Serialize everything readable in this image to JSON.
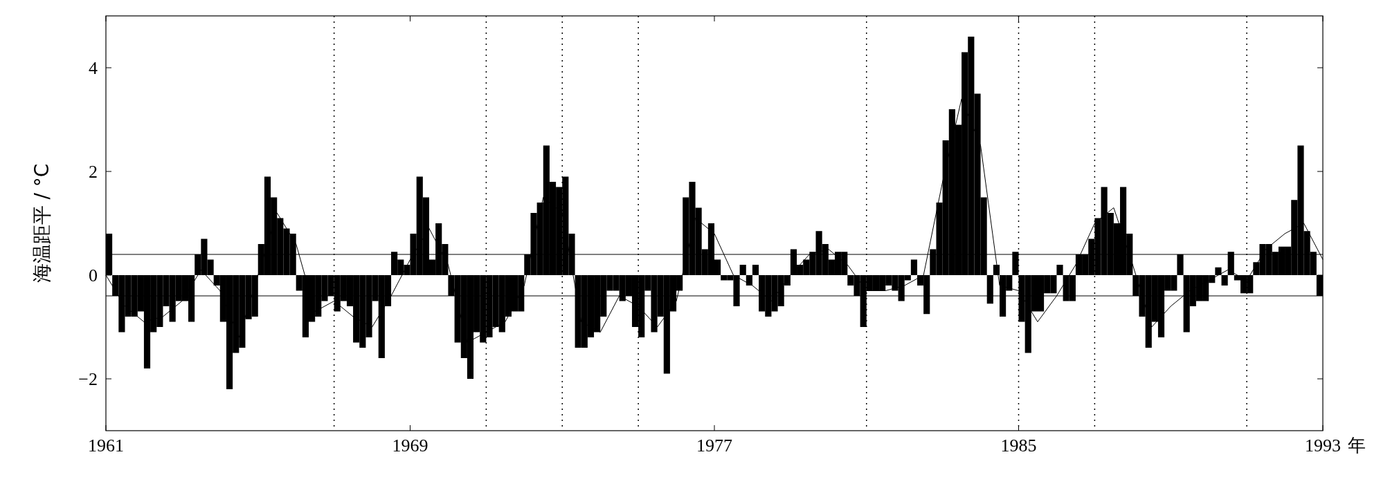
{
  "chart_data": {
    "type": "bar",
    "xlabel": "年",
    "ylabel": "海温距平 / °C",
    "xlim": [
      1961,
      1993
    ],
    "xticks": [
      1961,
      1969,
      1977,
      1985,
      1993
    ],
    "ylim": [
      -3,
      5
    ],
    "yticks": [
      -2,
      0,
      2,
      4
    ],
    "grid": false,
    "ref_lines": [
      {
        "axis": "y",
        "value": 0.4,
        "color": "#000000",
        "line_style": "solid"
      },
      {
        "axis": "y",
        "value": -0.4,
        "color": "#000000",
        "line_style": "solid"
      },
      {
        "axis": "x",
        "value": 1967,
        "color": "#000000",
        "line_style": "dotted"
      },
      {
        "axis": "x",
        "value": 1971,
        "color": "#000000",
        "line_style": "dotted"
      },
      {
        "axis": "x",
        "value": 1973,
        "color": "#000000",
        "line_style": "dotted"
      },
      {
        "axis": "x",
        "value": 1975,
        "color": "#000000",
        "line_style": "dotted"
      },
      {
        "axis": "x",
        "value": 1981,
        "color": "#000000",
        "line_style": "dotted"
      },
      {
        "axis": "x",
        "value": 1985,
        "color": "#000000",
        "line_style": "dotted"
      },
      {
        "axis": "x",
        "value": 1987,
        "color": "#000000",
        "line_style": "dotted"
      },
      {
        "axis": "x",
        "value": 1991,
        "color": "#000000",
        "line_style": "dotted"
      }
    ],
    "series": [
      {
        "color": "#000000",
        "x": [
          1961.083,
          1961.25,
          1961.417,
          1961.583,
          1961.75,
          1961.917,
          1962.083,
          1962.25,
          1962.417,
          1962.583,
          1962.75,
          1962.917,
          1963.083,
          1963.25,
          1963.417,
          1963.583,
          1963.75,
          1963.917,
          1964.083,
          1964.25,
          1964.417,
          1964.583,
          1964.75,
          1964.917,
          1965.083,
          1965.25,
          1965.417,
          1965.583,
          1965.75,
          1965.917,
          1966.083,
          1966.25,
          1966.417,
          1966.583,
          1966.75,
          1966.917,
          1967.083,
          1967.25,
          1967.417,
          1967.583,
          1967.75,
          1967.917,
          1968.083,
          1968.25,
          1968.417,
          1968.583,
          1968.75,
          1968.917,
          1969.083,
          1969.25,
          1969.417,
          1969.583,
          1969.75,
          1969.917,
          1970.083,
          1970.25,
          1970.417,
          1970.583,
          1970.75,
          1970.917,
          1971.083,
          1971.25,
          1971.417,
          1971.583,
          1971.75,
          1971.917,
          1972.083,
          1972.25,
          1972.417,
          1972.583,
          1972.75,
          1972.917,
          1973.083,
          1973.25,
          1973.417,
          1973.583,
          1973.75,
          1973.917,
          1974.083,
          1974.25,
          1974.417,
          1974.583,
          1974.75,
          1974.917,
          1975.083,
          1975.25,
          1975.417,
          1975.583,
          1975.75,
          1975.917,
          1976.083,
          1976.25,
          1976.417,
          1976.583,
          1976.75,
          1976.917,
          1977.083,
          1977.25,
          1977.417,
          1977.583,
          1977.75,
          1977.917,
          1978.083,
          1978.25,
          1978.417,
          1978.583,
          1978.75,
          1978.917,
          1979.083,
          1979.25,
          1979.417,
          1979.583,
          1979.75,
          1979.917,
          1980.083,
          1980.25,
          1980.417,
          1980.583,
          1980.75,
          1980.917,
          1981.083,
          1981.25,
          1981.417,
          1981.583,
          1981.75,
          1981.917,
          1982.083,
          1982.25,
          1982.417,
          1982.583,
          1982.75,
          1982.917,
          1983.083,
          1983.25,
          1983.417,
          1983.583,
          1983.75,
          1983.917,
          1984.083,
          1984.25,
          1984.417,
          1984.583,
          1984.75,
          1984.917,
          1985.083,
          1985.25,
          1985.417,
          1985.583,
          1985.75,
          1985.917,
          1986.083,
          1986.25,
          1986.417,
          1986.583,
          1986.75,
          1986.917,
          1987.083,
          1987.25,
          1987.417,
          1987.583,
          1987.75,
          1987.917,
          1988.083,
          1988.25,
          1988.417,
          1988.583,
          1988.75,
          1988.917,
          1989.083,
          1989.25,
          1989.417,
          1989.583,
          1989.75,
          1989.917,
          1990.083,
          1990.25,
          1990.417,
          1990.583,
          1990.75,
          1990.917,
          1991.083,
          1991.25,
          1991.417,
          1991.583,
          1991.75,
          1991.917,
          1992.083,
          1992.25,
          1992.417,
          1992.583,
          1992.75,
          1992.917
        ],
        "values": [
          0.8,
          -0.4,
          -1.1,
          -0.8,
          -0.8,
          -0.7,
          -1.8,
          -1.1,
          -1.0,
          -0.6,
          -0.9,
          -0.5,
          -0.5,
          -0.9,
          0.4,
          0.7,
          0.3,
          -0.2,
          -0.9,
          -2.2,
          -1.5,
          -1.4,
          -0.85,
          -0.8,
          0.6,
          1.9,
          1.5,
          1.1,
          0.9,
          0.8,
          -0.3,
          -1.2,
          -0.9,
          -0.8,
          -0.5,
          -0.4,
          -0.7,
          -0.5,
          -0.6,
          -1.3,
          -1.4,
          -1.2,
          -0.5,
          -1.6,
          -0.6,
          0.45,
          0.3,
          0.2,
          0.8,
          1.9,
          1.5,
          0.3,
          1.0,
          0.6,
          -0.4,
          -1.3,
          -1.6,
          -2.0,
          -1.1,
          -1.3,
          -1.2,
          -1.0,
          -1.1,
          -0.8,
          -0.7,
          -0.7,
          0.4,
          1.2,
          1.4,
          2.5,
          1.8,
          1.7,
          1.9,
          0.8,
          -1.4,
          -1.4,
          -1.2,
          -1.1,
          -0.8,
          -0.3,
          -0.3,
          -0.5,
          -0.4,
          -1.0,
          -1.2,
          -0.3,
          -1.1,
          -0.8,
          -1.9,
          -0.7,
          -0.3,
          1.5,
          1.8,
          1.3,
          0.5,
          1.0,
          0.3,
          -0.1,
          -0.1,
          -0.6,
          0.2,
          -0.2,
          0.2,
          -0.7,
          -0.8,
          -0.7,
          -0.6,
          -0.2,
          0.5,
          0.2,
          0.3,
          0.45,
          0.85,
          0.6,
          0.3,
          0.45,
          0.45,
          -0.2,
          -0.4,
          -1.0,
          -0.3,
          -0.3,
          -0.3,
          -0.2,
          -0.3,
          -0.5,
          -0.1,
          0.3,
          -0.2,
          -0.75,
          0.5,
          1.4,
          2.6,
          3.2,
          2.9,
          4.3,
          4.6,
          3.5,
          1.5,
          -0.55,
          0.2,
          -0.8,
          -0.3,
          0.45,
          -0.9,
          -1.5,
          -0.7,
          -0.7,
          -0.35,
          -0.35,
          0.2,
          -0.5,
          -0.5,
          0.4,
          0.4,
          0.7,
          1.1,
          1.7,
          1.2,
          1.0,
          1.7,
          0.8,
          -0.4,
          -0.8,
          -1.4,
          -0.9,
          -1.2,
          -0.3,
          -0.3,
          0.4,
          -1.1,
          -0.6,
          -0.5,
          -0.5,
          -0.15,
          0.15,
          -0.2,
          0.45,
          -0.1,
          -0.35,
          -0.35,
          0.25,
          0.6,
          0.6,
          0.45,
          0.55,
          0.55,
          1.45,
          2.5,
          0.85,
          0.45,
          -0.4
        ]
      },
      {
        "type": "line",
        "color": "#000000",
        "line_style": "solid",
        "marker": "none",
        "x": [
          1961.0,
          1961.5,
          1962.0,
          1962.5,
          1963.0,
          1963.5,
          1964.0,
          1964.5,
          1965.0,
          1965.5,
          1966.0,
          1966.5,
          1967.0,
          1967.5,
          1968.0,
          1968.5,
          1969.0,
          1969.5,
          1970.0,
          1970.5,
          1971.0,
          1971.5,
          1972.0,
          1972.5,
          1973.0,
          1973.5,
          1974.0,
          1974.5,
          1975.0,
          1975.5,
          1976.0,
          1976.5,
          1977.0,
          1977.5,
          1978.0,
          1978.5,
          1979.0,
          1979.5,
          1980.0,
          1980.5,
          1981.0,
          1981.5,
          1982.0,
          1982.5,
          1983.0,
          1983.5,
          1984.0,
          1984.5,
          1985.0,
          1985.5,
          1986.0,
          1986.5,
          1987.0,
          1987.5,
          1988.0,
          1988.5,
          1989.0,
          1989.5,
          1990.0,
          1990.5,
          1991.0,
          1991.5,
          1992.0,
          1992.5,
          1993.0
        ],
        "values": [
          0.0,
          -0.6,
          -0.9,
          -0.8,
          -0.5,
          0.1,
          -0.3,
          -1.2,
          0.0,
          1.2,
          0.6,
          -0.7,
          -0.5,
          -0.8,
          -1.0,
          -0.4,
          0.3,
          0.9,
          0.2,
          -1.3,
          -1.1,
          -0.9,
          -0.2,
          1.5,
          1.2,
          -0.9,
          -1.1,
          -0.4,
          -0.6,
          -1.0,
          -0.5,
          1.1,
          0.8,
          0.0,
          -0.2,
          -0.5,
          0.0,
          0.4,
          0.5,
          0.2,
          -0.3,
          -0.3,
          -0.2,
          0.0,
          1.8,
          3.4,
          2.5,
          -0.2,
          -0.3,
          -0.9,
          -0.4,
          0.2,
          1.0,
          1.3,
          0.2,
          -1.0,
          -0.6,
          -0.3,
          -0.1,
          0.1,
          -0.1,
          0.5,
          0.8,
          1.0,
          0.3
        ]
      }
    ]
  }
}
